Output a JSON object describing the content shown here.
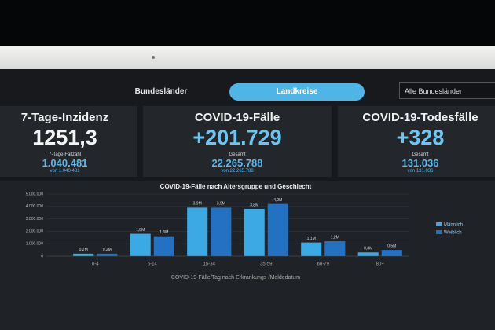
{
  "tabs": [
    "Bundesländer",
    "Landkreise"
  ],
  "dropdown": "Alle Bundesländer",
  "cards": [
    {
      "title": "7-Tage-Inzidenz",
      "value": "1251,3",
      "sub_label": "7-Tage-Fallzahl",
      "sub_value": "1.040.481",
      "sub_note": "von 1.040.481"
    },
    {
      "title": "COVID-19-Fälle",
      "value": "+201.729",
      "sub_label": "Gesamt",
      "sub_value": "22.265.788",
      "sub_note": "von 22.265.788"
    },
    {
      "title": "COVID-19-Todesfälle",
      "value": "+328",
      "sub_label": "Gesamt",
      "sub_value": "131.036",
      "sub_note": "von 131.036"
    }
  ],
  "chart_data": {
    "type": "bar",
    "title": "COVID-19-Fälle nach Altersgruppe und Geschlecht",
    "categories": [
      "0-4",
      "5-14",
      "15-34",
      "35-59",
      "60-79",
      "80+"
    ],
    "series": [
      {
        "name": "Männlich",
        "color": "#3aa9e4",
        "values": [
          200000,
          1800000,
          3900000,
          3800000,
          1100000,
          300000
        ],
        "value_labels": [
          "0,2M",
          "1,8M",
          "3,9M",
          "3,8M",
          "1,1M",
          "0,3M"
        ]
      },
      {
        "name": "Weiblich",
        "color": "#2271c3",
        "values": [
          200000,
          1600000,
          3900000,
          4200000,
          1200000,
          500000
        ],
        "value_labels": [
          "0,2M",
          "1,6M",
          "3,9M",
          "4,2M",
          "1,2M",
          "0,5M"
        ]
      }
    ],
    "ylim": [
      0,
      5000000
    ],
    "yticks": [
      0,
      {
        "value": 1000000,
        "label": "1.000.000"
      },
      {
        "value": 2000000,
        "label": "2.000.000"
      },
      {
        "value": 3000000,
        "label": "3.000.000"
      },
      {
        "value": 4000000,
        "label": "4.000.000"
      },
      {
        "value": 5000000,
        "label": "5.000.000"
      }
    ],
    "grid": true,
    "legend": "right"
  },
  "footer_title": "COVID-19-Fälle/Tag nach Erkrankungs-/Meldedatum"
}
